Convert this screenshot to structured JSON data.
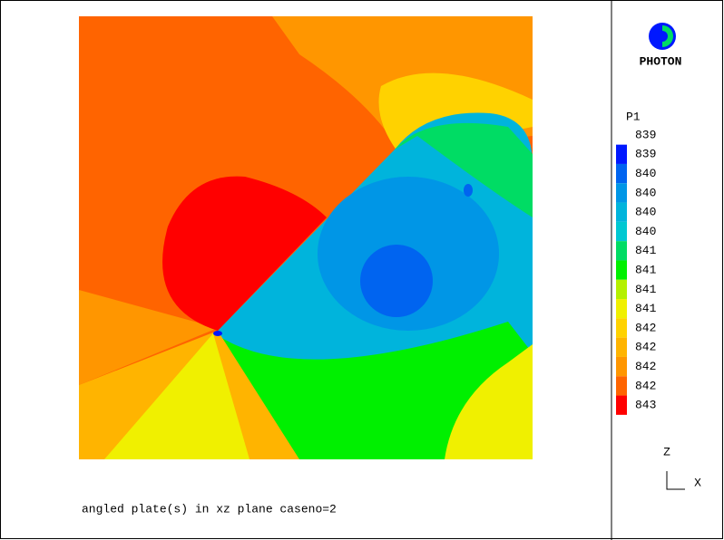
{
  "logo": "PHOTON",
  "legend": {
    "title": "P1",
    "labels": [
      "839",
      "839",
      "840",
      "840",
      "840",
      "840",
      "841",
      "841",
      "841",
      "841",
      "842",
      "842",
      "842",
      "842",
      "843"
    ],
    "colors": [
      "#0018ff",
      "#0064f0",
      "#0096e6",
      "#00b4dc",
      "#00c8d2",
      "#00dc64",
      "#00f000",
      "#b4f000",
      "#f0f000",
      "#ffd200",
      "#ffb400",
      "#ff9600",
      "#ff6400",
      "#ff0000"
    ]
  },
  "caption": "angled plate(s) in xz plane caseno=2",
  "axes": {
    "vertical": "Z",
    "horizontal": "X"
  }
}
